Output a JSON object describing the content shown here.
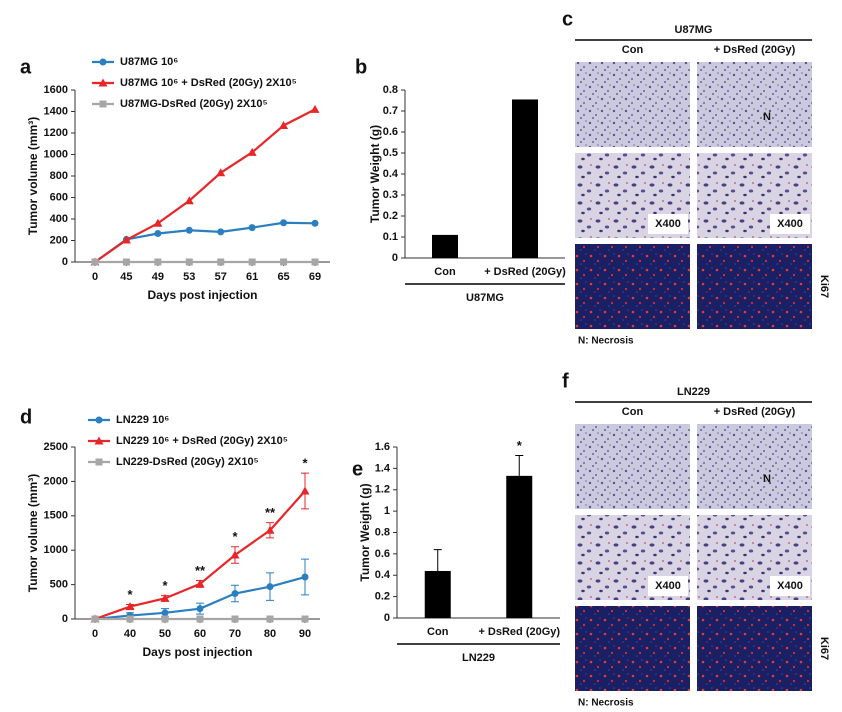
{
  "chart_data": [
    {
      "type": "line",
      "panel": "a",
      "xlabel": "Days post injection",
      "ylabel": "Tumor volume (mm³)",
      "categories": [
        "0",
        "45",
        "49",
        "53",
        "57",
        "61",
        "65",
        "69"
      ],
      "ylim": [
        0,
        1600
      ],
      "yticks": [
        0,
        200,
        400,
        600,
        800,
        1000,
        1200,
        1400,
        1600
      ],
      "series": [
        {
          "name": "U87MG 10⁶",
          "color": "#2a7fc1",
          "marker": "circle",
          "values": [
            0,
            210,
            265,
            295,
            280,
            320,
            365,
            360
          ]
        },
        {
          "name": "U87MG 10⁶ + DsRed (20Gy) 2X10⁵",
          "color": "#e8262a",
          "marker": "triangle",
          "values": [
            0,
            205,
            360,
            570,
            830,
            1020,
            1270,
            1420
          ]
        },
        {
          "name": "U87MG-DsRed (20Gy) 2X10⁵",
          "color": "#a6a6a6",
          "marker": "square",
          "values": [
            0,
            0,
            0,
            0,
            0,
            0,
            0,
            0
          ]
        }
      ]
    },
    {
      "type": "bar",
      "panel": "b",
      "ylabel": "Tumor Weight (g)",
      "group_label": "U87MG",
      "color": "#000000",
      "categories": [
        "Con",
        "+ DsRed (20Gy)"
      ],
      "values": [
        0.11,
        0.755
      ],
      "ylim": [
        0,
        0.8
      ],
      "yticks": [
        0,
        0.1,
        0.2,
        0.3,
        0.4,
        0.5,
        0.6,
        0.7,
        0.8
      ]
    },
    {
      "type": "line",
      "panel": "d",
      "xlabel": "Days post injection",
      "ylabel": "Tumor volume (mm³)",
      "categories": [
        "0",
        "40",
        "50",
        "60",
        "70",
        "80",
        "90"
      ],
      "ylim": [
        0,
        2500
      ],
      "yticks": [
        0,
        500,
        1000,
        1500,
        2000,
        2500
      ],
      "significance": [
        null,
        "*",
        "*",
        "**",
        "*",
        "**",
        "*"
      ],
      "series": [
        {
          "name": "LN229 10⁶",
          "color": "#2a7fc1",
          "marker": "circle",
          "values": [
            0,
            50,
            90,
            150,
            370,
            470,
            610
          ],
          "errors": [
            0,
            40,
            60,
            80,
            120,
            200,
            260
          ]
        },
        {
          "name": "LN229 10⁶ + DsRed (20Gy) 2X10⁵",
          "color": "#e8262a",
          "marker": "triangle",
          "values": [
            0,
            180,
            300,
            510,
            930,
            1290,
            1860
          ],
          "errors": [
            0,
            30,
            40,
            50,
            120,
            110,
            260
          ]
        },
        {
          "name": "LN229-DsRed (20Gy) 2X10⁵",
          "color": "#a6a6a6",
          "marker": "square",
          "values": [
            0,
            0,
            0,
            0,
            0,
            0,
            0
          ]
        }
      ]
    },
    {
      "type": "bar",
      "panel": "e",
      "ylabel": "Tumor Weight (g)",
      "group_label": "LN229",
      "color": "#000000",
      "categories": [
        "Con",
        "+ DsRed (20Gy)"
      ],
      "values": [
        0.44,
        1.33
      ],
      "errors": [
        0.2,
        0.19
      ],
      "significance": [
        null,
        "*"
      ],
      "ylim": [
        0,
        1.6
      ],
      "yticks": [
        0,
        0.2,
        0.4,
        0.6,
        0.8,
        1,
        1.2,
        1.4,
        1.6
      ]
    }
  ],
  "image_panels": [
    {
      "panel": "c",
      "title": "U87MG",
      "columns": [
        "Con",
        "+ DsRed (20Gy)"
      ],
      "necrosis_mark": "N",
      "magnification": [
        "X400",
        "X400"
      ],
      "stain": "Ki67",
      "footnote": "N: Necrosis"
    },
    {
      "panel": "f",
      "title": "LN229",
      "columns": [
        "Con",
        "+ DsRed (20Gy)"
      ],
      "necrosis_mark": "N",
      "magnification": [
        "X400",
        "X400"
      ],
      "stain": "Ki67",
      "footnote": "N: Necrosis"
    }
  ]
}
